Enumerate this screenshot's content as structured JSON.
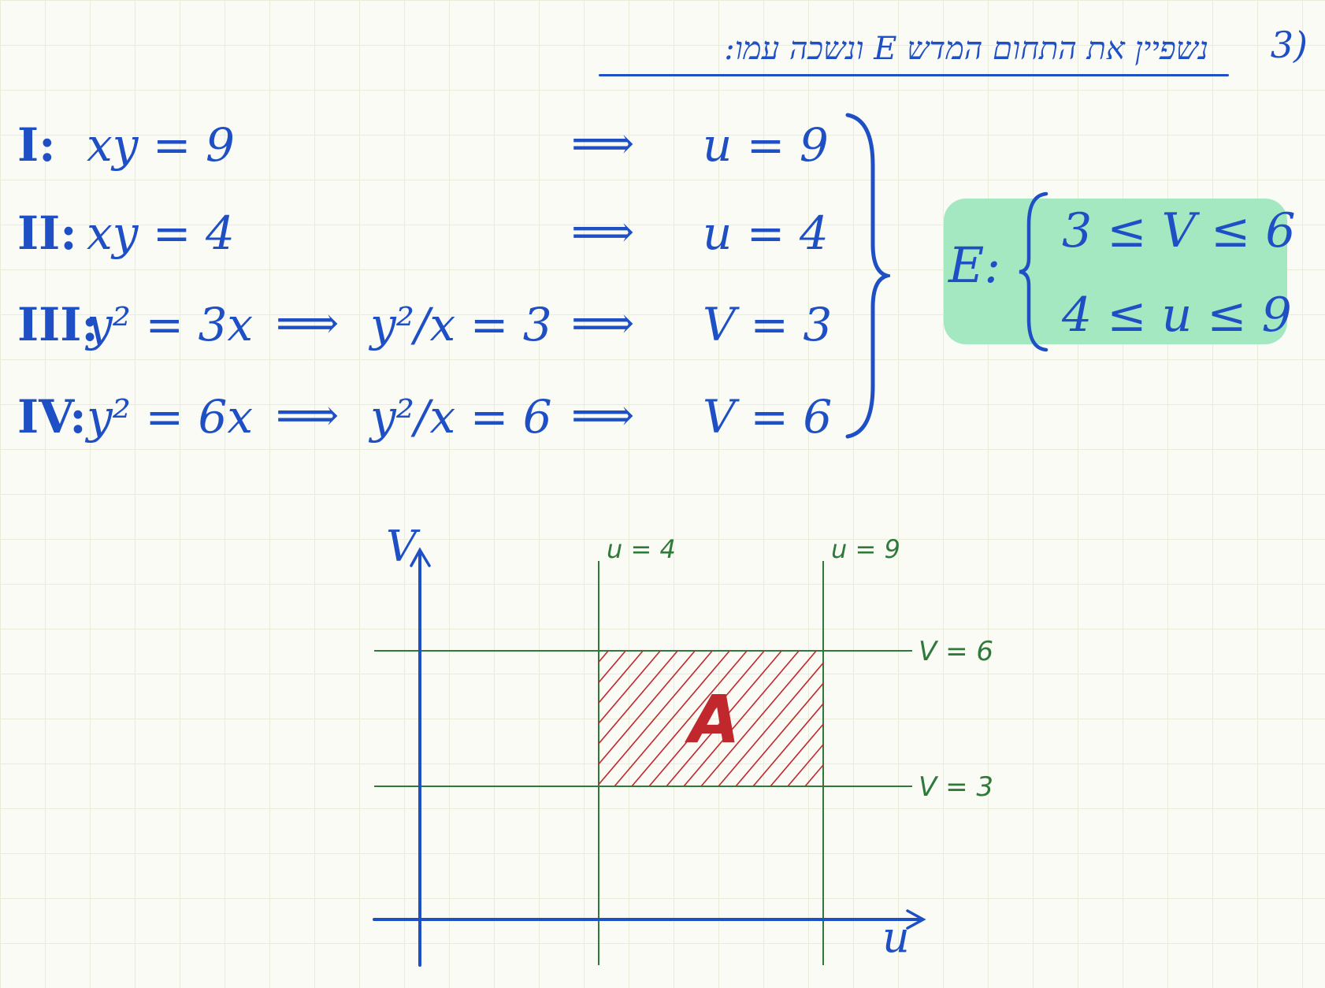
{
  "header": {
    "number": "3)",
    "title": "נשפיין את התחום המדש E ונשכה עמו:"
  },
  "equations": [
    {
      "label": "I:",
      "lhs": "xy = 9",
      "mid": "",
      "rhs": "u = 9"
    },
    {
      "label": "II:",
      "lhs": "xy = 4",
      "mid": "",
      "rhs": "u = 4"
    },
    {
      "label": "III:",
      "lhs": "y² = 3x",
      "mid": "y²/x = 3",
      "rhs": "V = 3"
    },
    {
      "label": "IV:",
      "lhs": "y² = 6x",
      "mid": "y²/x = 6",
      "rhs": "V = 6"
    }
  ],
  "arrow": "⟹",
  "region": {
    "label": "E:",
    "row1": "3 ≤ V ≤ 6",
    "row2": "4 ≤ u ≤ 9",
    "highlight_color": "#a4e8c1"
  },
  "chart_data": {
    "type": "region",
    "xlabel": "u",
    "ylabel": "V",
    "vertical_lines": [
      {
        "label": "u = 4",
        "value": 4
      },
      {
        "label": "u = 9",
        "value": 9
      }
    ],
    "horizontal_lines": [
      {
        "label": "V = 6",
        "value": 6
      },
      {
        "label": "V = 3",
        "value": 3
      }
    ],
    "region": {
      "name": "A",
      "u": [
        4,
        9
      ],
      "v": [
        3,
        6
      ]
    },
    "colors": {
      "axes": "#1f4fc4",
      "lines": "#2f7a3a",
      "hatch": "#c0282e"
    }
  }
}
